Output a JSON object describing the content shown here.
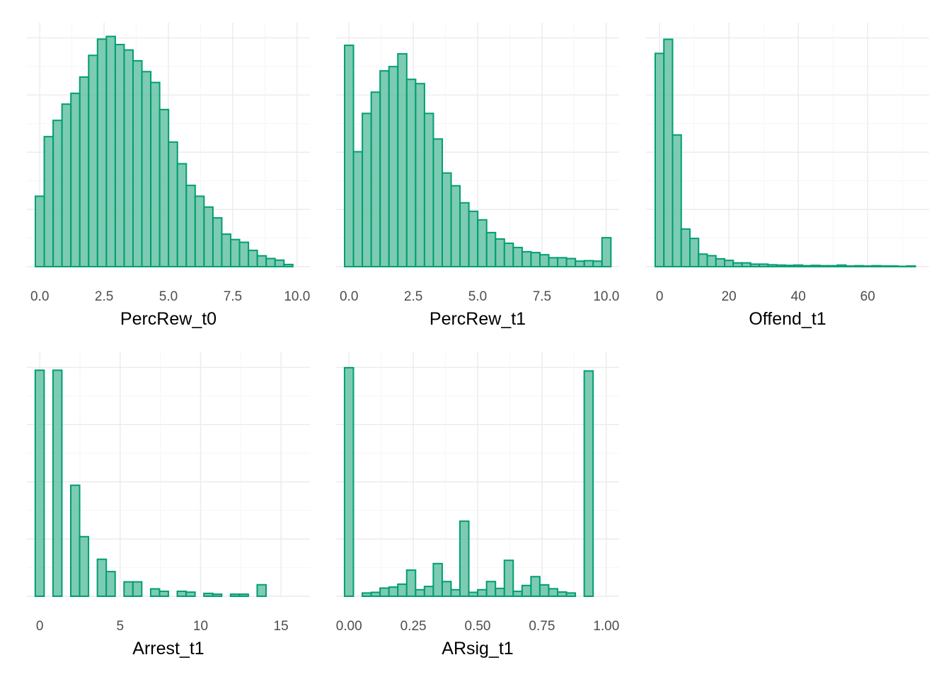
{
  "chart_data": [
    {
      "type": "bar",
      "xlabel": "PercRew_t0",
      "ylabel": "",
      "title": "",
      "xlim": [
        -0.5,
        10.5
      ],
      "xticks": [
        0,
        2.5,
        5,
        7.5,
        10
      ],
      "tick_labels": [
        "0.0",
        "2.5",
        "5.0",
        "7.5",
        "10.0"
      ],
      "bin_start": -0.17,
      "bin_width": 0.345,
      "values": [
        13,
        24,
        27,
        30,
        32,
        35,
        39,
        42,
        42.5,
        41,
        40,
        38,
        36,
        34,
        29,
        23,
        19,
        15,
        13,
        11,
        9,
        6,
        5,
        4.5,
        3,
        2,
        1.5,
        1.2,
        0.4
      ],
      "ylim": [
        0,
        44
      ]
    },
    {
      "type": "bar",
      "xlabel": "PercRew_t1",
      "ylabel": "",
      "title": "",
      "xlim": [
        -0.5,
        10.5
      ],
      "xticks": [
        0,
        2.5,
        5,
        7.5,
        10
      ],
      "tick_labels": [
        "0.0",
        "2.5",
        "5.0",
        "7.5",
        "10.0"
      ],
      "bin_start": -0.17,
      "bin_width": 0.345,
      "values": [
        52,
        27,
        36,
        41,
        46,
        47,
        50,
        44,
        43,
        36,
        30,
        22,
        19,
        15,
        13,
        11,
        8,
        6.5,
        5.5,
        4.5,
        3.5,
        3.3,
        2.8,
        2.1,
        2.1,
        1.9,
        1.3,
        1.4,
        1.3,
        6.8
      ],
      "ylim": [
        0,
        56
      ]
    },
    {
      "type": "bar",
      "xlabel": "Offend_t1",
      "ylabel": "",
      "title": "",
      "xlim": [
        -3.9,
        77.7
      ],
      "xticks": [
        0,
        20,
        40,
        60
      ],
      "tick_labels": [
        "0",
        "20",
        "40",
        "60"
      ],
      "bin_start": -1.25,
      "bin_width": 2.5,
      "values": [
        68,
        72.5,
        42,
        12,
        9,
        4,
        3.5,
        2.5,
        2,
        1.2,
        1.2,
        0.8,
        0.8,
        0.6,
        0.5,
        0.4,
        0.5,
        0.3,
        0.4,
        0.3,
        0.3,
        0.5,
        0.2,
        0.3,
        0.2,
        0.3,
        0.2,
        0.2,
        0.1,
        0.2
      ],
      "ylim": [
        0,
        76
      ]
    },
    {
      "type": "bar",
      "xlabel": "Arrest_t1",
      "ylabel": "",
      "title": "",
      "xlim": [
        -0.8,
        16.8
      ],
      "xticks": [
        0,
        5,
        10,
        15
      ],
      "tick_labels": [
        "0",
        "5",
        "10",
        "15"
      ],
      "bin_start": -0.28,
      "bin_width": 0.552,
      "values": [
        55,
        0,
        55,
        0,
        27,
        14.5,
        0,
        9,
        6,
        0,
        3.5,
        3.5,
        0,
        1.8,
        1.2,
        0,
        1.2,
        1,
        0,
        0.7,
        0.5,
        0,
        0.5,
        0.5,
        0,
        2.8
      ],
      "ylim": [
        0,
        58
      ]
    },
    {
      "type": "bar",
      "xlabel": "ARsig_t1",
      "ylabel": "",
      "title": "",
      "xlim": [
        -0.05,
        1.05
      ],
      "xticks": [
        0,
        0.25,
        0.5,
        0.75,
        1
      ],
      "tick_labels": [
        "0.00",
        "0.25",
        "0.50",
        "0.75",
        "1.00"
      ],
      "bin_start": -0.0172,
      "bin_width": 0.0345,
      "values": [
        70,
        0,
        1,
        1.2,
        2.5,
        2.8,
        3.7,
        8,
        2,
        3,
        10,
        4.5,
        2,
        23,
        1.2,
        2,
        4.5,
        2.4,
        11,
        1.5,
        3.3,
        6,
        3.5,
        2.3,
        1.3,
        1,
        0,
        69
      ],
      "ylim": [
        0,
        73
      ]
    }
  ]
}
